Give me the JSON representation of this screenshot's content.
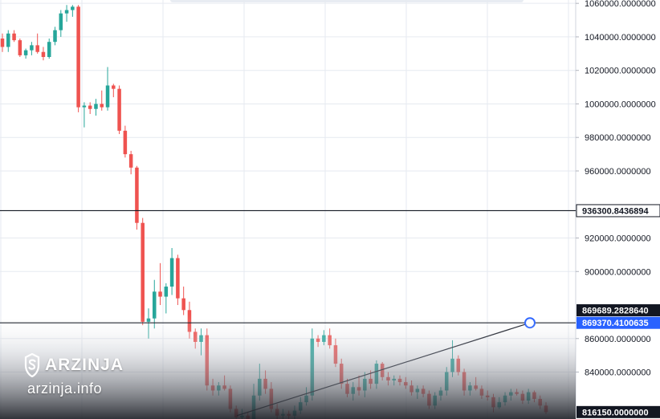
{
  "watermark": {
    "brand": "ARZINJA",
    "site": "arzinja.info"
  },
  "colors": {
    "up": "#26a69a",
    "down": "#ef5350",
    "grid": "#e6eaf0",
    "line": "#131722",
    "tag_blue": "#2962ff",
    "tag_dark": "#131722"
  },
  "chart_data": {
    "type": "candlestick",
    "y_axis": {
      "ylim": [
        812000,
        1062000
      ],
      "ticks": [
        "1060000.0000000",
        "1040000.0000000",
        "1020000.0000000",
        "1000000.0000000",
        "980000.0000000",
        "960000.0000000",
        "920000.0000000",
        "900000.0000000",
        "860000.0000000",
        "840000.0000000"
      ]
    },
    "horizontal_lines": [
      {
        "value": 936300.8436894,
        "label": "936300.8436894"
      },
      {
        "value": 869370.4100635,
        "label": "869370.4100635"
      }
    ],
    "price_tags": [
      {
        "value": 869689.282864,
        "label": "869689.2828640",
        "style": "dark"
      },
      {
        "value": 869370.4100635,
        "label": "869370.4100635",
        "style": "blue"
      },
      {
        "value": 816150.0,
        "label": "816150.0000000",
        "style": "dark"
      }
    ],
    "trendline": {
      "from": [
        0.4,
        814000
      ],
      "to": [
        1.0,
        869370.4
      ]
    },
    "candles": [
      [
        1039000,
        1042000,
        1031000,
        1034000
      ],
      [
        1034000,
        1044000,
        1031000,
        1042000
      ],
      [
        1042000,
        1044000,
        1037000,
        1038000
      ],
      [
        1038000,
        1039000,
        1028000,
        1029000
      ],
      [
        1029000,
        1033000,
        1027000,
        1032000
      ],
      [
        1032000,
        1037000,
        1029000,
        1035000
      ],
      [
        1035000,
        1042000,
        1030000,
        1031000
      ],
      [
        1031000,
        1034000,
        1026000,
        1028000
      ],
      [
        1028000,
        1039000,
        1027000,
        1037000
      ],
      [
        1037000,
        1046000,
        1035000,
        1044000
      ],
      [
        1044000,
        1056000,
        1040000,
        1054000
      ],
      [
        1054000,
        1059000,
        1049000,
        1056000
      ],
      [
        1056000,
        1059000,
        1052000,
        1058000
      ],
      [
        1058000,
        1059000,
        995000,
        998000
      ],
      [
        998000,
        1001000,
        986000,
        999000
      ],
      [
        999000,
        1001000,
        994000,
        997000
      ],
      [
        997000,
        1003000,
        993000,
        1000000
      ],
      [
        1000000,
        1008000,
        996000,
        998000
      ],
      [
        998000,
        1022000,
        996000,
        1011000
      ],
      [
        1011000,
        1012000,
        1004000,
        1009000
      ],
      [
        1009000,
        1011000,
        982000,
        984000
      ],
      [
        984000,
        987000,
        968000,
        970000
      ],
      [
        970000,
        972000,
        958000,
        962000
      ],
      [
        962000,
        963000,
        925000,
        929000
      ],
      [
        929000,
        932000,
        868000,
        870000
      ],
      [
        870000,
        878000,
        860000,
        872000
      ],
      [
        872000,
        895000,
        866000,
        888000
      ],
      [
        888000,
        905000,
        880000,
        885000
      ],
      [
        885000,
        893000,
        875000,
        891000
      ],
      [
        891000,
        914000,
        886000,
        908000
      ],
      [
        908000,
        910000,
        880000,
        884000
      ],
      [
        884000,
        891000,
        874000,
        877000
      ],
      [
        877000,
        882000,
        860000,
        864000
      ],
      [
        864000,
        866000,
        854000,
        858000
      ],
      [
        858000,
        866000,
        850000,
        862000
      ],
      [
        862000,
        866000,
        829000,
        832000
      ],
      [
        832000,
        836000,
        826000,
        829000
      ],
      [
        829000,
        834000,
        826000,
        832000
      ],
      [
        832000,
        838000,
        829000,
        830000
      ],
      [
        830000,
        832000,
        816000,
        818000
      ],
      [
        818000,
        820000,
        810000,
        813000
      ],
      [
        813000,
        818000,
        808000,
        814000
      ],
      [
        814000,
        816000,
        809000,
        812000
      ],
      [
        812000,
        833000,
        811000,
        826000
      ],
      [
        826000,
        845000,
        823000,
        836000
      ],
      [
        836000,
        841000,
        827000,
        830000
      ],
      [
        830000,
        834000,
        816000,
        818000
      ],
      [
        818000,
        821000,
        812000,
        814000
      ],
      [
        814000,
        818000,
        811000,
        815000
      ],
      [
        815000,
        817000,
        812000,
        814000
      ],
      [
        814000,
        820000,
        812000,
        817000
      ],
      [
        817000,
        825000,
        815000,
        822000
      ],
      [
        822000,
        831000,
        820000,
        826000
      ],
      [
        826000,
        866000,
        823000,
        860000
      ],
      [
        860000,
        862000,
        855000,
        858000
      ],
      [
        858000,
        865000,
        856000,
        862000
      ],
      [
        862000,
        866000,
        854000,
        856000
      ],
      [
        856000,
        860000,
        843000,
        845000
      ],
      [
        845000,
        848000,
        830000,
        833000
      ],
      [
        833000,
        836000,
        825000,
        827000
      ],
      [
        827000,
        834000,
        823000,
        831000
      ],
      [
        831000,
        838000,
        826000,
        829000
      ],
      [
        829000,
        840000,
        825000,
        836000
      ],
      [
        836000,
        841000,
        830000,
        833000
      ],
      [
        833000,
        847000,
        830000,
        845000
      ],
      [
        845000,
        846000,
        835000,
        837000
      ],
      [
        837000,
        840000,
        832000,
        835000
      ],
      [
        835000,
        838000,
        832000,
        836000
      ],
      [
        836000,
        838000,
        832000,
        834000
      ],
      [
        834000,
        837000,
        830000,
        832000
      ],
      [
        832000,
        835000,
        826000,
        828000
      ],
      [
        828000,
        832000,
        824000,
        830000
      ],
      [
        830000,
        832000,
        825000,
        827000
      ],
      [
        827000,
        829000,
        818000,
        820000
      ],
      [
        820000,
        828000,
        818000,
        826000
      ],
      [
        826000,
        831000,
        823000,
        829000
      ],
      [
        829000,
        843000,
        826000,
        840000
      ],
      [
        840000,
        859000,
        837000,
        848000
      ],
      [
        848000,
        850000,
        838000,
        840000
      ],
      [
        840000,
        842000,
        826000,
        829000
      ],
      [
        829000,
        834000,
        826000,
        832000
      ],
      [
        832000,
        837000,
        829000,
        830000
      ],
      [
        830000,
        832000,
        824000,
        826000
      ],
      [
        826000,
        829000,
        823000,
        825000
      ],
      [
        825000,
        827000,
        816000,
        819000
      ],
      [
        819000,
        825000,
        818000,
        822000
      ],
      [
        822000,
        828000,
        820000,
        826000
      ],
      [
        826000,
        830000,
        823000,
        828000
      ],
      [
        828000,
        830000,
        826000,
        827000
      ],
      [
        827000,
        829000,
        821000,
        823000
      ],
      [
        823000,
        830000,
        821000,
        828000
      ],
      [
        828000,
        829000,
        822000,
        824000
      ],
      [
        824000,
        826000,
        818000,
        820000
      ],
      [
        820000,
        822000,
        815000,
        816150
      ]
    ]
  }
}
